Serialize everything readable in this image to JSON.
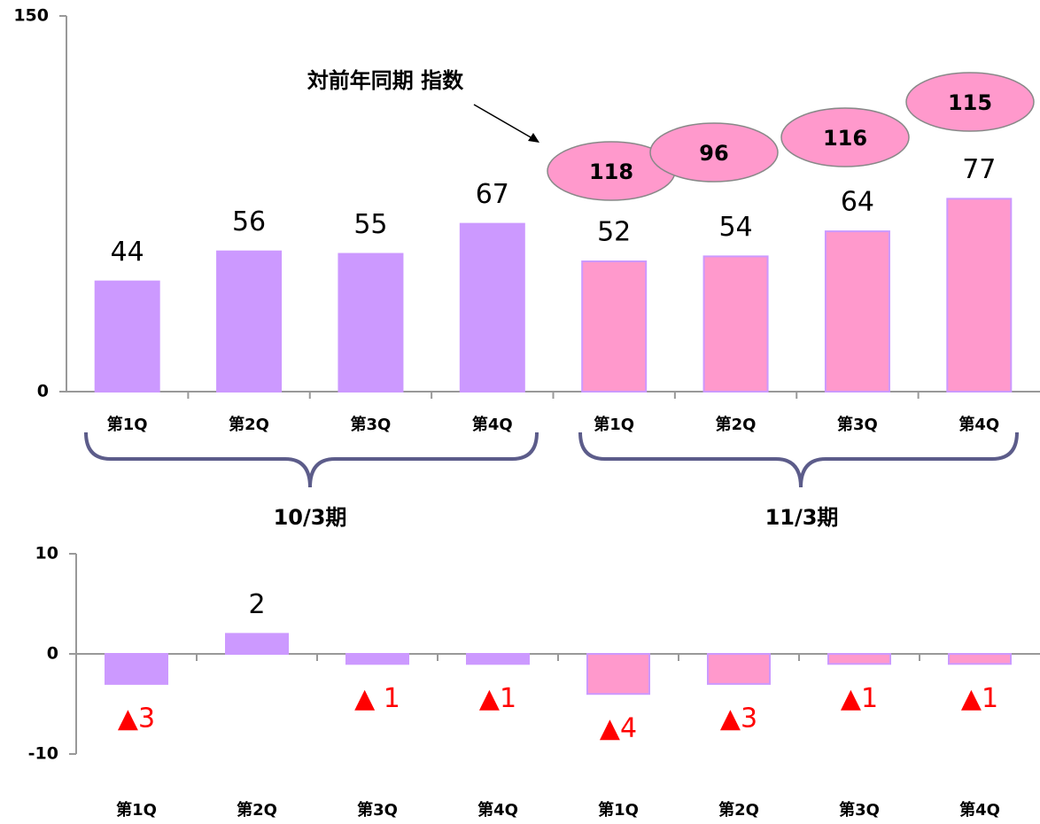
{
  "chart_data": [
    {
      "type": "bar",
      "categories": [
        "第1Q",
        "第2Q",
        "第3Q",
        "第4Q",
        "第1Q",
        "第2Q",
        "第3Q",
        "第4Q"
      ],
      "values": [
        44,
        56,
        55,
        67,
        52,
        54,
        64,
        77
      ],
      "colors": [
        "#cc99ff",
        "#cc99ff",
        "#cc99ff",
        "#cc99ff",
        "#ff99cc",
        "#ff99cc",
        "#ff99cc",
        "#ff99cc"
      ],
      "ylim": [
        0,
        150
      ],
      "yticks": [
        0,
        150
      ],
      "grid": false,
      "groups": [
        "10/3期",
        "11/3期"
      ],
      "index": {
        "label": "対前年同期 指数",
        "values": [
          118,
          96,
          116,
          115
        ]
      }
    },
    {
      "type": "bar",
      "categories": [
        "第1Q",
        "第2Q",
        "第3Q",
        "第4Q",
        "第1Q",
        "第2Q",
        "第3Q",
        "第4Q"
      ],
      "values": [
        -3,
        2,
        -1,
        -1,
        -4,
        -3,
        -1,
        -1
      ],
      "value_labels": [
        "▲3",
        "2",
        "▲ 1",
        "▲1",
        "▲4",
        "▲3",
        "▲1",
        "▲1"
      ],
      "colors": [
        "#cc99ff",
        "#cc99ff",
        "#cc99ff",
        "#cc99ff",
        "#ff99cc",
        "#ff99cc",
        "#ff99cc",
        "#ff99cc"
      ],
      "ylim": [
        -10,
        10
      ],
      "yticks": [
        -10,
        0,
        10
      ],
      "grid": false
    }
  ]
}
